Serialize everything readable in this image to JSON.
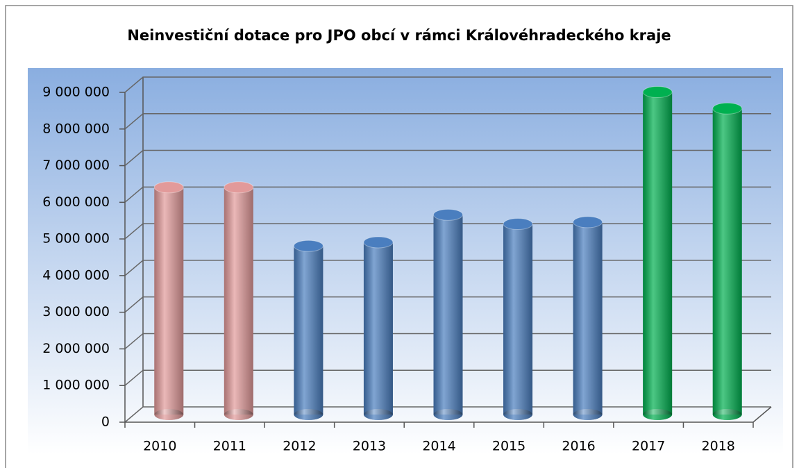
{
  "chart_data": {
    "type": "bar3d",
    "title": "Neinvestiční dotace pro JPO obcí v rámci Královéhradeckého kraje",
    "categories": [
      "2010",
      "2011",
      "2012",
      "2013",
      "2014",
      "2015",
      "2016",
      "2017",
      "2018"
    ],
    "values": [
      6200000,
      6200000,
      4600000,
      4700000,
      5450000,
      5200000,
      5250000,
      8800000,
      8350000
    ],
    "colors": [
      "#e29a9a",
      "#e29a9a",
      "#4a7ebf",
      "#4a7ebf",
      "#4a7ebf",
      "#4a7ebf",
      "#4a7ebf",
      "#00b050",
      "#00b050"
    ],
    "ylim": [
      0,
      9000000
    ],
    "yticks": [
      {
        "value": 0,
        "label": "0"
      },
      {
        "value": 1000000,
        "label": "1 000 000"
      },
      {
        "value": 2000000,
        "label": "2 000 000"
      },
      {
        "value": 3000000,
        "label": "3 000 000"
      },
      {
        "value": 4000000,
        "label": "4 000 000"
      },
      {
        "value": 5000000,
        "label": "5 000 000"
      },
      {
        "value": 6000000,
        "label": "6 000 000"
      },
      {
        "value": 7000000,
        "label": "7 000 000"
      },
      {
        "value": 8000000,
        "label": "8 000 000"
      },
      {
        "value": 9000000,
        "label": "9 000 000"
      }
    ],
    "grid": true
  }
}
